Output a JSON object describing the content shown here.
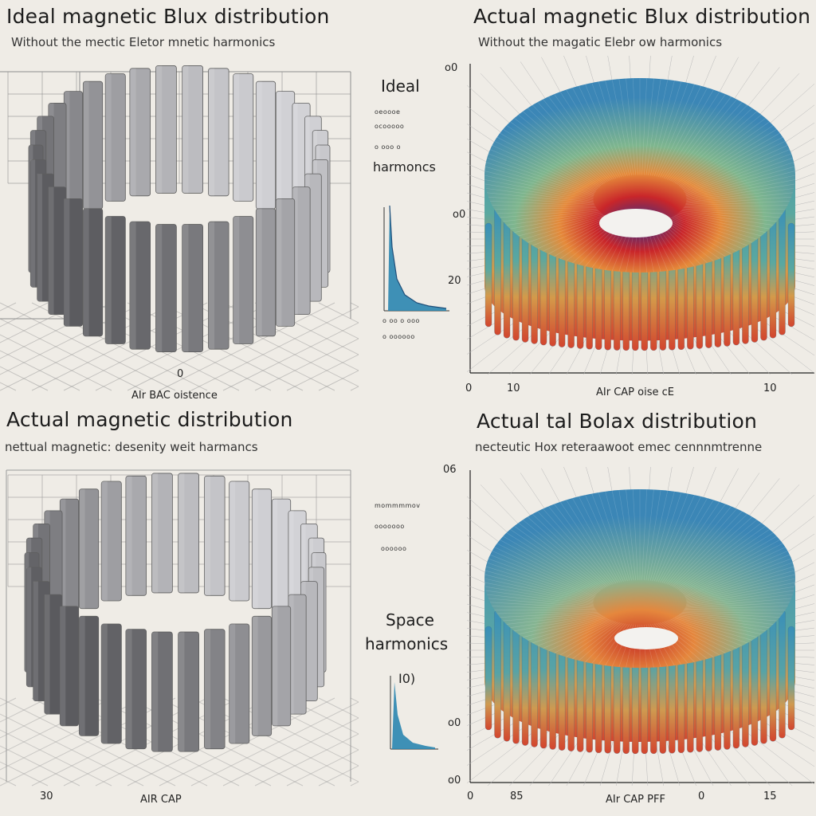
{
  "panels": [
    {
      "title": "Ideal magnetic Blux distribution",
      "subtitle": "Without the mectic Eletor mnetic harmonics"
    },
    {
      "title": "Actual magnetic Blux distribution",
      "subtitle": "Without the magatic Elebr ow harmonics"
    },
    {
      "title": "Actual magnetic distribution",
      "subtitle": "nettual magnetic: desenity weit harmancs"
    },
    {
      "title": "Actual  tal Bolax distribution",
      "subtitle": "necteutic Hox reteraawoot emec cennnmtrenne"
    }
  ],
  "middle_top": {
    "heading": "Ideal",
    "tiny_lines": [
      "oeoooe",
      "ocooooo",
      "o ooo o"
    ],
    "label": "harmoncs",
    "bottom_lines": [
      "o oo o ooo",
      "o oooooo"
    ],
    "tick_labels": [
      "o0",
      "20"
    ]
  },
  "middle_bottom": {
    "heading": "Space",
    "label": "harmonics",
    "value": "I0)",
    "tiny_lines": [
      "mommmmov",
      "ooooooo",
      "oooooo"
    ],
    "tick_label": "o0"
  },
  "axes": {
    "p1_bottom": "AIr BAC oistence",
    "p1_tick": "0",
    "p2_left_top": "o0",
    "p2_left_mid": "o0",
    "p2_bottom": "AIr CAP oise cE",
    "p2_ticks": [
      "0",
      "10",
      "10"
    ],
    "p3_bottom": "AIR CAP",
    "p3_tick": "30",
    "p4_left_top": "06",
    "p4_left_mid": "o0",
    "p4_bottom": "AIr CAP PFF",
    "p4_ticks": [
      "0",
      "85",
      "0",
      "15"
    ]
  }
}
